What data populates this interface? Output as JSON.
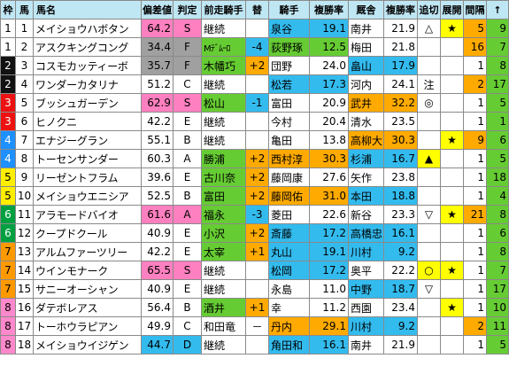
{
  "headers": [
    "枠",
    "馬",
    "馬名",
    "偏差値",
    "判定",
    "前走騎手",
    "替",
    "騎手",
    "複勝率",
    "厩舎",
    "複勝率",
    "追切",
    "展開",
    "間隔",
    "↑"
  ],
  "colors": {
    "header_bg": "#bfe6f3",
    "waku": [
      "#ffffff",
      "#111111",
      "#ee1111",
      "#1e90ff",
      "#ffee00",
      "#00a040",
      "#ff9900",
      "#ff88cc"
    ],
    "waku_text": [
      "#000000",
      "#ffffff",
      "#ffffff",
      "#ffffff",
      "#000000",
      "#ffffff",
      "#000000",
      "#000000"
    ],
    "dev_pink": "#ff80c0",
    "dev_gray": "#a0a0a0",
    "green": "#66cc33",
    "orange": "#ffaa00",
    "blue": "#33bbee",
    "yellow": "#ffff00"
  },
  "rows": [
    {
      "waku": 1,
      "num": "1",
      "name": "メイショウハボタン",
      "dev": "64.2",
      "dev_color": "pink",
      "grade": "S",
      "prev": "継続",
      "chg": "",
      "jockey": "泉谷",
      "jrate": "19.1",
      "jockey_color": "blue",
      "trainer": "南井",
      "trate": "21.9",
      "trainer_color": "",
      "oikiri": "△",
      "tenkai": "★",
      "kankaku": "5",
      "up": "9",
      "kan_color": "orange",
      "up_color": "green"
    },
    {
      "waku": 1,
      "num": "2",
      "name": "アスクキングコング",
      "dev": "34.4",
      "dev_color": "gray",
      "grade": "F",
      "prev": "Mﾃﾞﾑｰﾛ",
      "chg": "-4",
      "jockey": "荻野琢",
      "jrate": "12.5",
      "jockey_color": "green",
      "trainer": "梅田",
      "trate": "21.8",
      "trainer_color": "",
      "oikiri": "",
      "tenkai": "",
      "kankaku": "16",
      "up": "7",
      "kan_color": "orange",
      "up_color": "green"
    },
    {
      "waku": 2,
      "num": "3",
      "name": "コスモカッティーボ",
      "dev": "35.7",
      "dev_color": "gray",
      "grade": "F",
      "prev": "木幡巧",
      "chg": "+2",
      "jockey": "団野",
      "jrate": "24.0",
      "jockey_color": "",
      "trainer": "畠山",
      "trate": "17.9",
      "trainer_color": "blue",
      "oikiri": "",
      "tenkai": "",
      "kankaku": "1",
      "up": "8",
      "kan_color": "",
      "up_color": "green"
    },
    {
      "waku": 2,
      "num": "4",
      "name": "ワンダーカタリナ",
      "dev": "51.2",
      "dev_color": "",
      "grade": "C",
      "prev": "継続",
      "chg": "",
      "jockey": "松若",
      "jrate": "17.3",
      "jockey_color": "blue",
      "trainer": "河内",
      "trate": "24.1",
      "trainer_color": "",
      "oikiri": "注",
      "tenkai": "",
      "kankaku": "2",
      "up": "17",
      "kan_color": "orange",
      "up_color": "green"
    },
    {
      "waku": 3,
      "num": "5",
      "name": "ブッシュガーデン",
      "dev": "62.9",
      "dev_color": "pink",
      "grade": "S",
      "prev": "松山",
      "chg": "-1",
      "jockey": "富田",
      "jrate": "20.9",
      "jockey_color": "",
      "trainer": "武井",
      "trate": "32.2",
      "trainer_color": "orange",
      "oikiri": "◎",
      "tenkai": "",
      "kankaku": "1",
      "up": "5",
      "kan_color": "",
      "up_color": "green"
    },
    {
      "waku": 3,
      "num": "6",
      "name": "ヒノクニ",
      "dev": "42.2",
      "dev_color": "",
      "grade": "E",
      "prev": "継続",
      "chg": "",
      "jockey": "今村",
      "jrate": "20.4",
      "jockey_color": "",
      "trainer": "清水",
      "trate": "23.5",
      "trainer_color": "",
      "oikiri": "",
      "tenkai": "",
      "kankaku": "1",
      "up": "1",
      "kan_color": "",
      "up_color": "green"
    },
    {
      "waku": 4,
      "num": "7",
      "name": "エナジーグラン",
      "dev": "55.1",
      "dev_color": "",
      "grade": "B",
      "prev": "継続",
      "chg": "",
      "jockey": "亀田",
      "jrate": "13.8",
      "jockey_color": "",
      "trainer": "高柳大",
      "trate": "30.3",
      "trainer_color": "orange",
      "oikiri": "",
      "tenkai": "★",
      "kankaku": "9",
      "up": "6",
      "kan_color": "orange",
      "up_color": "green"
    },
    {
      "waku": 4,
      "num": "8",
      "name": "トーセンサンダー",
      "dev": "60.3",
      "dev_color": "",
      "grade": "A",
      "prev": "勝浦",
      "chg": "+2",
      "jockey": "西村淳",
      "jrate": "30.3",
      "jockey_color": "orange",
      "trainer": "杉浦",
      "trate": "16.7",
      "trainer_color": "blue",
      "oikiri": "▲",
      "tenkai": "",
      "kankaku": "1",
      "up": "5",
      "kan_color": "",
      "up_color": "green"
    },
    {
      "waku": 5,
      "num": "9",
      "name": "リーゼントフラム",
      "dev": "39.6",
      "dev_color": "",
      "grade": "E",
      "prev": "古川奈",
      "chg": "+2",
      "jockey": "藤岡康",
      "jrate": "27.6",
      "jockey_color": "",
      "trainer": "矢作",
      "trate": "23.8",
      "trainer_color": "",
      "oikiri": "",
      "tenkai": "",
      "kankaku": "1",
      "up": "18",
      "kan_color": "",
      "up_color": "green"
    },
    {
      "waku": 5,
      "num": "10",
      "name": "メイショウエニシア",
      "dev": "52.5",
      "dev_color": "",
      "grade": "B",
      "prev": "富田",
      "chg": "+2",
      "jockey": "藤岡佑",
      "jrate": "31.0",
      "jockey_color": "orange",
      "trainer": "本田",
      "trate": "18.8",
      "trainer_color": "blue",
      "oikiri": "",
      "tenkai": "",
      "kankaku": "1",
      "up": "4",
      "kan_color": "",
      "up_color": "green"
    },
    {
      "waku": 6,
      "num": "11",
      "name": "アラモードバイオ",
      "dev": "61.6",
      "dev_color": "pink",
      "grade": "A",
      "prev": "福永",
      "chg": "-3",
      "jockey": "菱田",
      "jrate": "22.6",
      "jockey_color": "",
      "trainer": "新谷",
      "trate": "23.3",
      "trainer_color": "",
      "oikiri": "▽",
      "tenkai": "★",
      "kankaku": "21",
      "up": "8",
      "kan_color": "orange",
      "up_color": "green"
    },
    {
      "waku": 6,
      "num": "12",
      "name": "クープドクール",
      "dev": "40.9",
      "dev_color": "",
      "grade": "E",
      "prev": "小沢",
      "chg": "+2",
      "jockey": "斎藤",
      "jrate": "17.2",
      "jockey_color": "blue",
      "trainer": "高橋忠",
      "trate": "16.1",
      "trainer_color": "blue",
      "oikiri": "",
      "tenkai": "",
      "kankaku": "1",
      "up": "6",
      "kan_color": "",
      "up_color": "green"
    },
    {
      "waku": 7,
      "num": "13",
      "name": "アルムファーツリー",
      "dev": "42.2",
      "dev_color": "",
      "grade": "E",
      "prev": "太宰",
      "chg": "+1",
      "jockey": "丸山",
      "jrate": "19.1",
      "jockey_color": "blue",
      "trainer": "川村",
      "trate": "9.2",
      "trainer_color": "blue",
      "oikiri": "",
      "tenkai": "",
      "kankaku": "1",
      "up": "8",
      "kan_color": "",
      "up_color": "green"
    },
    {
      "waku": 7,
      "num": "14",
      "name": "ウインモナーク",
      "dev": "65.5",
      "dev_color": "pink",
      "grade": "S",
      "prev": "継続",
      "chg": "",
      "jockey": "松岡",
      "jrate": "17.2",
      "jockey_color": "blue",
      "trainer": "奥平",
      "trate": "22.2",
      "trainer_color": "",
      "oikiri": "○",
      "tenkai": "★",
      "kankaku": "1",
      "up": "7",
      "kan_color": "",
      "up_color": "green"
    },
    {
      "waku": 7,
      "num": "15",
      "name": "サニーオーシャン",
      "dev": "40.9",
      "dev_color": "",
      "grade": "E",
      "prev": "継続",
      "chg": "",
      "jockey": "永島",
      "jrate": "11.0",
      "jockey_color": "",
      "trainer": "中野",
      "trate": "18.7",
      "trainer_color": "blue",
      "oikiri": "▽",
      "tenkai": "",
      "kankaku": "1",
      "up": "17",
      "kan_color": "",
      "up_color": "green"
    },
    {
      "waku": 8,
      "num": "16",
      "name": "ダテボレアス",
      "dev": "56.4",
      "dev_color": "",
      "grade": "B",
      "prev": "酒井",
      "chg": "+1",
      "jockey": "幸",
      "jrate": "11.2",
      "jockey_color": "",
      "trainer": "西園",
      "trate": "23.4",
      "trainer_color": "",
      "oikiri": "",
      "tenkai": "★",
      "kankaku": "1",
      "up": "10",
      "kan_color": "",
      "up_color": "green"
    },
    {
      "waku": 8,
      "num": "17",
      "name": "トーホウラピアン",
      "dev": "49.9",
      "dev_color": "",
      "grade": "C",
      "prev": "和田竜",
      "chg": "－",
      "jockey": "丹内",
      "jrate": "29.1",
      "jockey_color": "orange",
      "trainer": "川村",
      "trate": "9.2",
      "trainer_color": "blue",
      "oikiri": "",
      "tenkai": "",
      "kankaku": "2",
      "up": "11",
      "kan_color": "orange",
      "up_color": "green"
    },
    {
      "waku": 8,
      "num": "18",
      "name": "メイショウイジゲン",
      "dev": "44.7",
      "dev_color": "blue",
      "grade": "D",
      "prev": "継続",
      "chg": "",
      "jockey": "角田和",
      "jrate": "16.1",
      "jockey_color": "blue",
      "trainer": "南井",
      "trate": "21.9",
      "trainer_color": "",
      "oikiri": "",
      "tenkai": "",
      "kankaku": "1",
      "up": "5",
      "kan_color": "",
      "up_color": "green"
    }
  ]
}
